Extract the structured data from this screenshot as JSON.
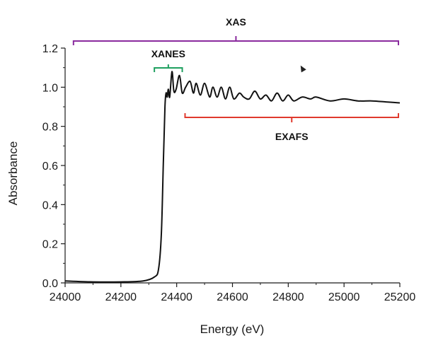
{
  "chart_data": {
    "type": "line",
    "title": "",
    "xlabel": "Energy (eV)",
    "ylabel": "Absorbance",
    "xlim": [
      24000,
      25200
    ],
    "ylim": [
      0.0,
      1.2
    ],
    "x_ticks": [
      24000,
      24200,
      24400,
      24600,
      24800,
      25000,
      25200
    ],
    "y_ticks": [
      0.0,
      0.2,
      0.4,
      0.6,
      0.8,
      1.0,
      1.2
    ],
    "x_tick_labels": [
      "24000",
      "24200",
      "24400",
      "24600",
      "24800",
      "25000",
      "25200"
    ],
    "y_tick_labels": [
      "0.0",
      "0.2",
      "0.4",
      "0.6",
      "0.8",
      "1.0",
      "1.2"
    ],
    "grid": false,
    "legend": "none",
    "series": [
      {
        "color": "#111111",
        "x": [
          24000,
          24100,
          24200,
          24280,
          24320,
          24335,
          24345,
          24352,
          24358,
          24362,
          24366,
          24370,
          24375,
          24383,
          24390,
          24398,
          24410,
          24420,
          24432,
          24448,
          24460,
          24470,
          24485,
          24500,
          24518,
          24530,
          24545,
          24560,
          24575,
          24590,
          24605,
          24625,
          24640,
          24660,
          24680,
          24700,
          24720,
          24740,
          24760,
          24780,
          24800,
          24820,
          24850,
          24880,
          24900,
          24950,
          25000,
          25050,
          25100,
          25150,
          25200
        ],
        "y": [
          0.01,
          0.005,
          0.005,
          0.01,
          0.03,
          0.07,
          0.25,
          0.6,
          0.9,
          0.97,
          0.95,
          0.99,
          0.95,
          1.08,
          0.98,
          0.99,
          1.06,
          0.97,
          1.0,
          1.03,
          0.97,
          1.02,
          0.96,
          1.02,
          0.95,
          1.0,
          0.95,
          1.0,
          0.94,
          1.0,
          0.94,
          0.97,
          0.95,
          0.94,
          0.98,
          0.94,
          0.96,
          0.93,
          0.97,
          0.93,
          0.96,
          0.93,
          0.95,
          0.94,
          0.95,
          0.93,
          0.94,
          0.93,
          0.93,
          0.925,
          0.92
        ]
      }
    ],
    "annotations": [
      {
        "label": "XAS",
        "x_start": 24030,
        "x_end": 25200,
        "color": "#8a2b9e"
      },
      {
        "label": "XANES",
        "x_start": 24320,
        "x_end": 24420,
        "color": "#1fa060"
      },
      {
        "label": "EXAFS",
        "x_start": 24430,
        "x_end": 25200,
        "color": "#e03a2e"
      }
    ]
  }
}
